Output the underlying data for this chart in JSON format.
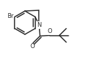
{
  "bg_color": "#ffffff",
  "line_color": "#2a2a2a",
  "line_width": 1.1,
  "figsize": [
    1.43,
    0.83
  ],
  "dpi": 100,
  "xlim": [
    0,
    143
  ],
  "ylim": [
    0,
    83
  ]
}
